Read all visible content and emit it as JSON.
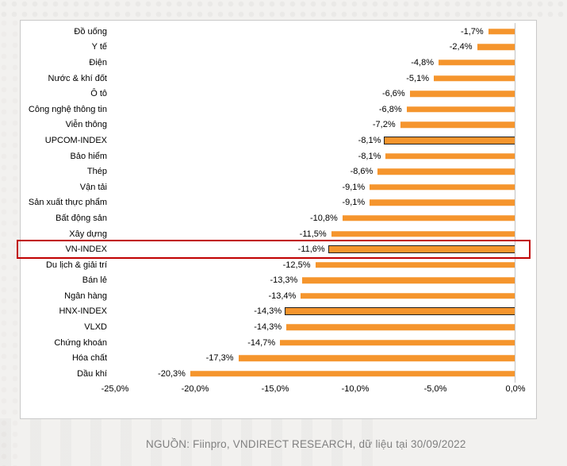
{
  "page": {
    "source_note": "NGUỒN: Fiinpro, VNDIRECT RESEARCH, dữ liệu tại 30/09/2022"
  },
  "chart_data": {
    "type": "bar",
    "orientation": "horizontal",
    "title": "",
    "categories": [
      "Đồ uống",
      "Y tế",
      "Điện",
      "Nước & khí đốt",
      "Ô tô",
      "Công nghệ thông tin",
      "Viễn thông",
      "UPCOM-INDEX",
      "Bảo hiểm",
      "Thép",
      "Vận tải",
      "Sản xuất thực phẩm",
      "Bất động sản",
      "Xây dựng",
      "VN-INDEX",
      "Du lịch & giải trí",
      "Bán lẻ",
      "Ngân hàng",
      "HNX-INDEX",
      "VLXD",
      "Chứng khoán",
      "Hóa chất",
      "Dầu khí"
    ],
    "values": [
      -1.7,
      -2.4,
      -4.8,
      -5.1,
      -6.6,
      -6.8,
      -7.2,
      -8.1,
      -8.1,
      -8.6,
      -9.1,
      -9.1,
      -10.8,
      -11.5,
      -11.6,
      -12.5,
      -13.3,
      -13.4,
      -14.3,
      -14.3,
      -14.7,
      -17.3,
      -20.3
    ],
    "value_labels": [
      "-1,7%",
      "-2,4%",
      "-4,8%",
      "-5,1%",
      "-6,6%",
      "-6,8%",
      "-7,2%",
      "-8,1%",
      "-8,1%",
      "-8,6%",
      "-9,1%",
      "-9,1%",
      "-10,8%",
      "-11,5%",
      "-11,6%",
      "-12,5%",
      "-13,3%",
      "-13,4%",
      "-14,3%",
      "-14,3%",
      "-14,7%",
      "-17,3%",
      "-20,3%"
    ],
    "outlined_categories": [
      "UPCOM-INDEX",
      "VN-INDEX",
      "HNX-INDEX"
    ],
    "highlighted_category": "VN-INDEX",
    "x_ticks": [
      -25,
      -20,
      -15,
      -10,
      -5,
      0
    ],
    "x_tick_labels": [
      "-25,0%",
      "-20,0%",
      "-15,0%",
      "-10,0%",
      "-5,0%",
      "0,0%"
    ],
    "xlim": [
      -25,
      0
    ],
    "grid": false,
    "legend": "none",
    "colors": {
      "bar": "#F5952D",
      "bar_outline": "#1f1f1f",
      "highlight_box": "#C00000",
      "axis_line": "#C3C3C3",
      "panel_border": "#C9C9C9",
      "source_text": "#808080"
    }
  }
}
